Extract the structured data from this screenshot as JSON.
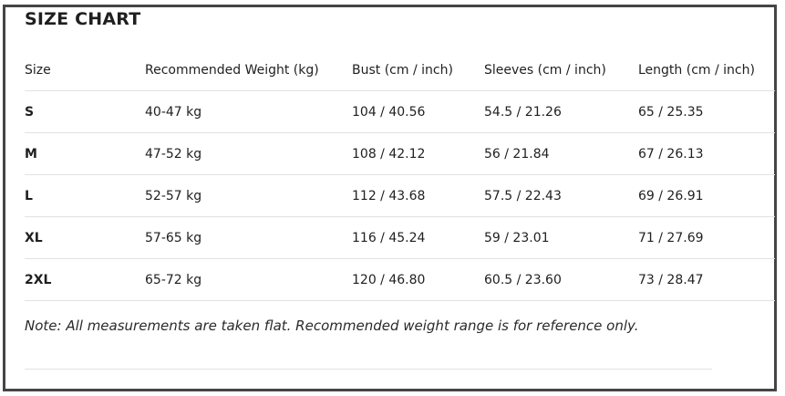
{
  "title": "SIZE CHART",
  "table": {
    "headers": [
      "Size",
      "Recommended Weight (kg)",
      "Bust (cm / inch)",
      "Sleeves (cm / inch)",
      "Length (cm / inch)"
    ],
    "rows": [
      [
        "S",
        "40-47 kg",
        "104 / 40.56",
        "54.5 / 21.26",
        "65 / 25.35"
      ],
      [
        "M",
        "47-52 kg",
        "108 / 42.12",
        "56 / 21.84",
        "67 / 26.13"
      ],
      [
        "L",
        "52-57 kg",
        "112 / 43.68",
        "57.5 / 22.43",
        "69 / 26.91"
      ],
      [
        "XL",
        "57-65 kg",
        "116 / 45.24",
        "59 / 23.01",
        "71 / 27.69"
      ],
      [
        "2XL",
        "65-72 kg",
        "120 / 46.80",
        "60.5 / 23.60",
        "73 / 28.47"
      ]
    ]
  },
  "note": "Note: All measurements are taken flat. Recommended weight range is for reference only."
}
